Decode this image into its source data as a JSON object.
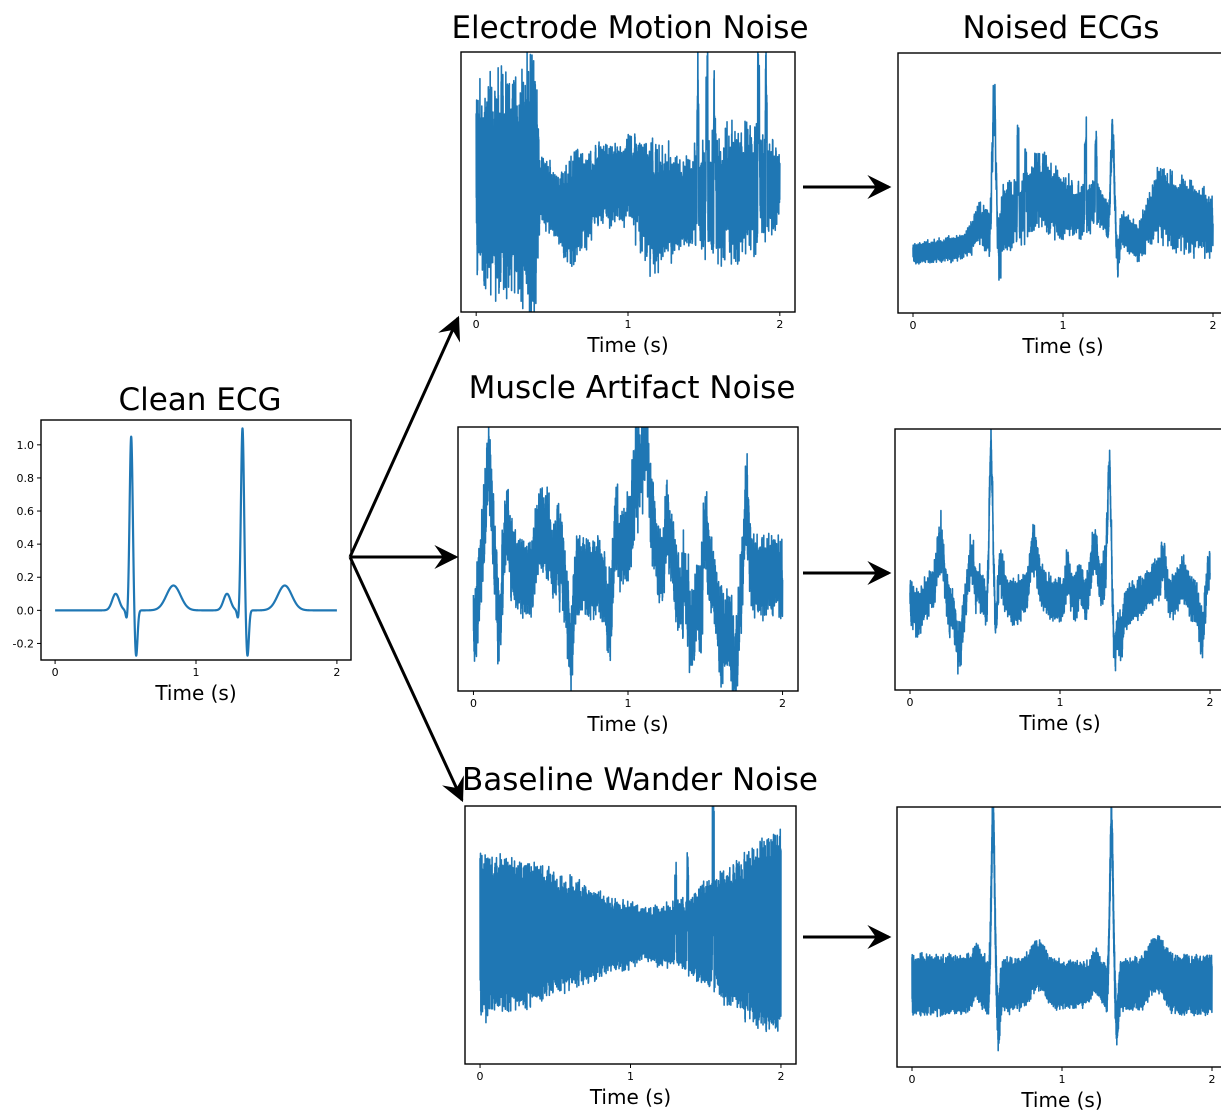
{
  "colors": {
    "signal": "#1f77b4",
    "frame": "#000000",
    "arrow": "#000000"
  },
  "chart_data": [
    {
      "id": "clean",
      "type": "line",
      "title": "Clean ECG",
      "xlabel": "Time (s)",
      "ylabel": "",
      "xlim": [
        -0.1,
        2.1
      ],
      "ylim": [
        -0.3,
        1.15
      ],
      "xticks": [
        "0",
        "1",
        "2"
      ],
      "yticks": [
        "-0.2",
        "0.0",
        "0.2",
        "0.4",
        "0.6",
        "0.8",
        "1.0"
      ],
      "signal": {
        "ecg": true,
        "peaks": [
          0.54,
          1.33
        ],
        "peak_heights": [
          1.05,
          1.1
        ]
      }
    },
    {
      "id": "em",
      "type": "line",
      "title": "Electrode Motion Noise",
      "xlabel": "Time (s)",
      "xlim": [
        -0.1,
        2.1
      ],
      "ylim": [
        -1.15,
        1.2
      ],
      "xticks": [
        "0",
        "1",
        "2"
      ],
      "signal": {
        "ecg": false,
        "noise_env": [
          [
            0,
            0.45
          ],
          [
            0.06,
            0.6
          ],
          [
            0.3,
            0.7
          ],
          [
            0.38,
            0.9
          ],
          [
            0.42,
            0.18
          ],
          [
            0.55,
            0.18
          ],
          [
            0.62,
            0.5
          ],
          [
            0.75,
            0.3
          ],
          [
            0.95,
            0.2
          ],
          [
            1.15,
            0.55
          ],
          [
            1.35,
            0.3
          ],
          [
            1.55,
            0.45
          ],
          [
            1.75,
            0.6
          ],
          [
            2.0,
            0.22
          ]
        ],
        "noise_offset": [
          [
            0,
            0
          ],
          [
            0.4,
            0
          ],
          [
            0.6,
            -0.28
          ],
          [
            0.8,
            0
          ],
          [
            1.0,
            0.05
          ],
          [
            1.2,
            -0.2
          ],
          [
            1.6,
            -0.1
          ],
          [
            2.0,
            0
          ]
        ],
        "hf": [
          [
            0,
            0.55
          ],
          [
            0.4,
            0.55
          ],
          [
            0.42,
            0.2
          ],
          [
            2.0,
            0.2
          ]
        ],
        "spikes": [
          [
            1.46,
            1.0
          ],
          [
            1.52,
            0.95
          ],
          [
            1.57,
            0.8
          ],
          [
            1.86,
            1.1
          ],
          [
            1.91,
            0.9
          ]
        ]
      }
    },
    {
      "id": "ma",
      "type": "line",
      "title": "Muscle Artifact Noise",
      "xlabel": "Time (s)",
      "xlim": [
        -0.1,
        2.1
      ],
      "ylim": [
        -1.0,
        1.3
      ],
      "xticks": [
        "0",
        "1",
        "2"
      ],
      "signal": {
        "ecg": false,
        "noise_env": [
          [
            0,
            0.25
          ],
          [
            2.0,
            0.25
          ]
        ],
        "noise_offset": [
          [
            0,
            0
          ],
          [
            2.0,
            0
          ]
        ],
        "hf": [
          [
            0,
            0.18
          ],
          [
            2.0,
            0.18
          ]
        ],
        "bursts": 32,
        "burst_amp": 0.75
      }
    },
    {
      "id": "bw",
      "type": "line",
      "title": "Baseline Wander Noise",
      "xlabel": "Time (s)",
      "xlim": [
        -0.1,
        2.1
      ],
      "ylim": [
        -1.2,
        1.2
      ],
      "xticks": [
        "0",
        "1",
        "2"
      ],
      "signal": {
        "ecg": false,
        "noise_env": [
          [
            0,
            0.1
          ],
          [
            2.0,
            0.1
          ]
        ],
        "noise_offset": [
          [
            0,
            0
          ],
          [
            2.0,
            0
          ]
        ],
        "hf": [
          [
            0,
            0.75
          ],
          [
            0.4,
            0.6
          ],
          [
            0.8,
            0.35
          ],
          [
            1.1,
            0.2
          ],
          [
            1.3,
            0.25
          ],
          [
            1.6,
            0.55
          ],
          [
            2.0,
            1.0
          ]
        ],
        "spikes": [
          [
            1.3,
            0.45
          ],
          [
            1.38,
            0.5
          ],
          [
            1.55,
            0.7
          ]
        ]
      }
    },
    {
      "id": "n1",
      "type": "line",
      "title": "Noised ECGs",
      "xlabel": "Time (s)",
      "xlim": [
        -0.1,
        2.1
      ],
      "ylim": [
        -0.9,
        1.3
      ],
      "xticks": [
        "0",
        "1",
        "2"
      ],
      "signal": {
        "ecg": true,
        "peaks": [
          0.54,
          1.33
        ],
        "peak_heights": [
          1.1,
          0.75
        ],
        "noise_env": [
          [
            0,
            0.05
          ],
          [
            0.35,
            0.06
          ],
          [
            0.55,
            0.25
          ],
          [
            0.9,
            0.3
          ],
          [
            1.1,
            0.2
          ],
          [
            1.3,
            0.1
          ],
          [
            1.5,
            0.08
          ],
          [
            1.7,
            0.3
          ],
          [
            2.0,
            0.2
          ]
        ],
        "noise_offset": [
          [
            0,
            -0.4
          ],
          [
            0.3,
            -0.35
          ],
          [
            0.5,
            -0.2
          ],
          [
            0.75,
            0
          ],
          [
            1.0,
            0
          ],
          [
            1.25,
            -0.05
          ],
          [
            1.5,
            -0.3
          ],
          [
            1.7,
            -0.05
          ],
          [
            2.0,
            -0.15
          ]
        ],
        "hf": [
          [
            0,
            0.06
          ],
          [
            2.0,
            0.12
          ]
        ],
        "spikes": [
          [
            0.7,
            0.45
          ],
          [
            0.75,
            0.35
          ],
          [
            1.15,
            0.55
          ],
          [
            1.22,
            0.5
          ]
        ]
      }
    },
    {
      "id": "n2",
      "type": "line",
      "title": "",
      "xlabel": "Time (s)",
      "xlim": [
        -0.1,
        2.1
      ],
      "ylim": [
        -0.7,
        1.35
      ],
      "xticks": [
        "0",
        "1",
        "2"
      ],
      "signal": {
        "ecg": true,
        "peaks": [
          0.54,
          1.33
        ],
        "peak_heights": [
          1.2,
          0.95
        ],
        "noise_env": [
          [
            0,
            0.12
          ],
          [
            2.0,
            0.12
          ]
        ],
        "noise_offset": [
          [
            0,
            0
          ],
          [
            2.0,
            0
          ]
        ],
        "hf": [
          [
            0,
            0.09
          ],
          [
            2.0,
            0.09
          ]
        ],
        "bursts": 26,
        "burst_amp": 0.3
      }
    },
    {
      "id": "n3",
      "type": "line",
      "title": "",
      "xlabel": "Time (s)",
      "xlim": [
        -0.1,
        2.1
      ],
      "ylim": [
        -0.6,
        1.3
      ],
      "xticks": [
        "0",
        "1",
        "2"
      ],
      "signal": {
        "ecg": true,
        "peaks": [
          0.54,
          1.33
        ],
        "peak_heights": [
          1.25,
          1.15
        ],
        "noise_env": [
          [
            0,
            0.03
          ],
          [
            2.0,
            0.03
          ]
        ],
        "noise_offset": [
          [
            0,
            0
          ],
          [
            2.0,
            0
          ]
        ],
        "hf": [
          [
            0,
            0.22
          ],
          [
            0.8,
            0.18
          ],
          [
            1.2,
            0.15
          ],
          [
            1.6,
            0.2
          ],
          [
            2.0,
            0.22
          ]
        ]
      }
    }
  ]
}
